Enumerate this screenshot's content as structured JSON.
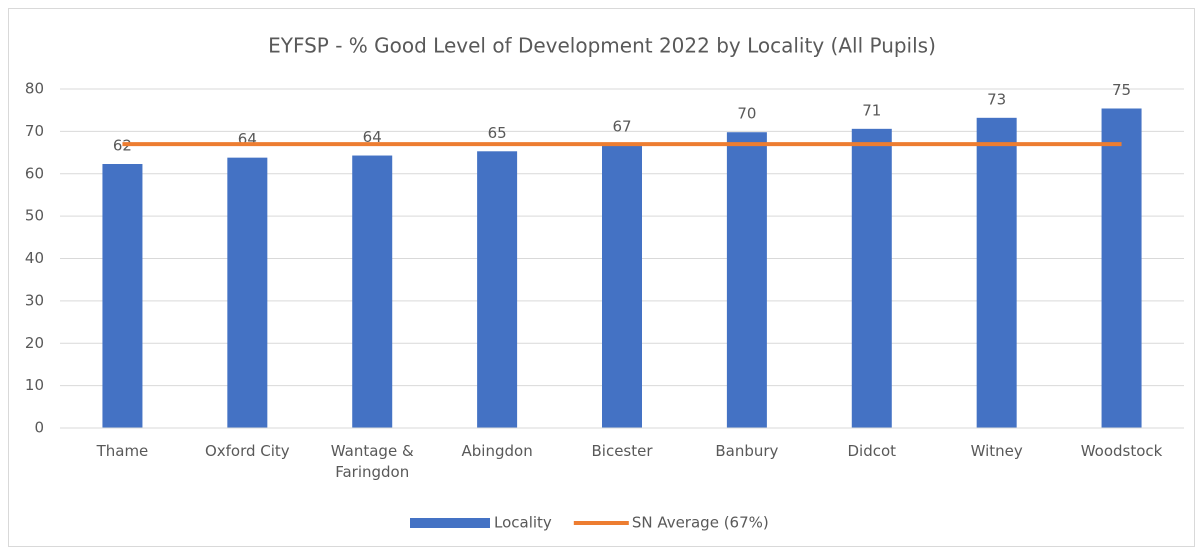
{
  "chart_data": {
    "type": "bar",
    "title": "EYFSP - % Good Level of Development 2022 by Locality (All Pupils)",
    "categories": [
      "Thame",
      "Oxford City",
      "Wantage & Faringdon",
      "Abingdon",
      "Bicester",
      "Banbury",
      "Didcot",
      "Witney",
      "Woodstock"
    ],
    "series": [
      {
        "name": "Locality",
        "type": "bar",
        "color": "#4472c4",
        "values": [
          62.3,
          63.8,
          64.3,
          65.3,
          66.8,
          69.8,
          70.6,
          73.2,
          75.4
        ],
        "value_labels": [
          "62",
          "64",
          "64",
          "65",
          "67",
          "70",
          "71",
          "73",
          "75"
        ]
      },
      {
        "name": "SN Average (67%)",
        "type": "line",
        "color": "#ed7d31",
        "values": [
          67,
          67,
          67,
          67,
          67,
          67,
          67,
          67,
          67
        ]
      }
    ],
    "ylim": [
      0,
      80
    ],
    "yticks": [
      0,
      10,
      20,
      30,
      40,
      50,
      60,
      70,
      80
    ],
    "grid": true,
    "legend": "bottom"
  }
}
